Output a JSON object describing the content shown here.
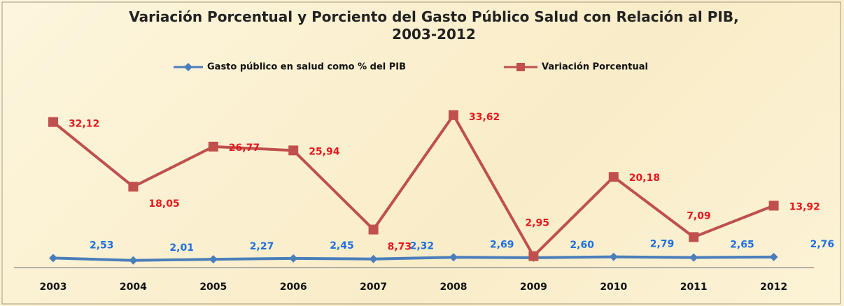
{
  "chart_data": {
    "type": "line",
    "title": "Variación Porcentual y Porciento del Gasto Público Salud con Relación al PIB, 2003-2012",
    "categories": [
      "2003",
      "2004",
      "2005",
      "2006",
      "2007",
      "2008",
      "2009",
      "2010",
      "2011",
      "2012"
    ],
    "ylim": [
      0,
      35
    ],
    "series": [
      {
        "name": "Gasto público en salud como % del PIB",
        "color": "#4a7ebb",
        "label_color": "#1e6fe0",
        "marker": "diamond",
        "values": [
          2.53,
          2.01,
          2.27,
          2.45,
          2.32,
          2.69,
          2.6,
          2.79,
          2.65,
          2.76
        ],
        "value_labels": [
          "2,53",
          "2,01",
          "2,27",
          "2,45",
          "2,32",
          "2,69",
          "2,60",
          "2,79",
          "2,65",
          "2,76"
        ]
      },
      {
        "name": "Variación Porcentual",
        "color": "#c0504d",
        "label_color": "#e8161e",
        "marker": "square",
        "values": [
          32.12,
          18.05,
          26.77,
          25.94,
          8.73,
          33.62,
          2.95,
          20.18,
          7.09,
          13.92
        ],
        "value_labels": [
          "32,12",
          "18,05",
          "26,77",
          "25,94",
          "8,73",
          "33,62",
          "2,95",
          "20,18",
          "7,09",
          "13,92"
        ]
      }
    ]
  }
}
